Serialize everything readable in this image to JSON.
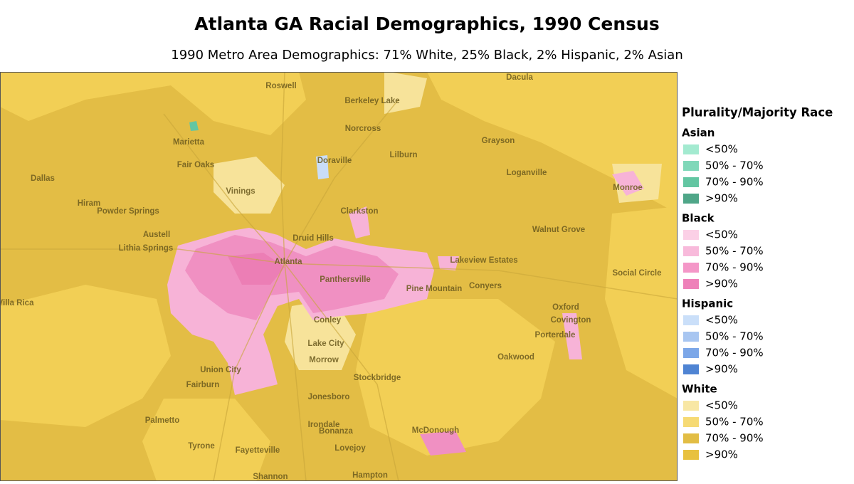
{
  "header": {
    "title": "Atlanta GA Racial Demographics, 1990 Census",
    "subtitle": "1990 Metro Area Demographics: 71% White, 25% Black, 2% Hispanic, 2% Asian"
  },
  "map": {
    "places": [
      "Roswell",
      "Dacula",
      "Berkeley Lake",
      "Norcross",
      "Marietta",
      "Grayson",
      "Doraville",
      "Lilburn",
      "Fair Oaks",
      "Dallas",
      "Loganville",
      "Monroe",
      "Vinings",
      "Hiram",
      "Powder Springs",
      "Clarkston",
      "Druid Hills",
      "Austell",
      "Walnut Grove",
      "Lithia Springs",
      "Atlanta",
      "Lakeview Estates",
      "Panthersville",
      "Social Circle",
      "Pine Mountain",
      "Conyers",
      "Villa Rica",
      "Oxford",
      "Covington",
      "Conley",
      "Porterdale",
      "Lake City",
      "Morrow",
      "Oakwood",
      "Union City",
      "Stockbridge",
      "Fairburn",
      "Jonesboro",
      "Palmetto",
      "Irondale",
      "Bonanza",
      "McDonough",
      "Tyrone",
      "Fayetteville",
      "Lovejoy",
      "Shannon",
      "Hampton"
    ]
  },
  "legend": {
    "title": "Plurality/Majority Race",
    "groups": [
      {
        "name": "Asian",
        "items": [
          {
            "label": "<50%",
            "color": "#a3ead0"
          },
          {
            "label": "50% - 70%",
            "color": "#80d8b9"
          },
          {
            "label": "70% - 90%",
            "color": "#63c6a2"
          },
          {
            "label": ">90%",
            "color": "#4fa688"
          }
        ]
      },
      {
        "name": "Black",
        "items": [
          {
            "label": "<50%",
            "color": "#fbd0e6"
          },
          {
            "label": "50% - 70%",
            "color": "#f8badb"
          },
          {
            "label": "70% - 90%",
            "color": "#f497c8"
          },
          {
            "label": ">90%",
            "color": "#ee81b9"
          }
        ]
      },
      {
        "name": "Hispanic",
        "items": [
          {
            "label": "<50%",
            "color": "#cadff9"
          },
          {
            "label": "50% - 70%",
            "color": "#a8c6f1"
          },
          {
            "label": "70% - 90%",
            "color": "#7ca7e8"
          },
          {
            "label": ">90%",
            "color": "#4f84d3"
          }
        ]
      },
      {
        "name": "White",
        "items": [
          {
            "label": "<50%",
            "color": "#f8e7a4"
          },
          {
            "label": "50% - 70%",
            "color": "#f6da74"
          },
          {
            "label": "70% - 90%",
            "color": "#e2bd44"
          },
          {
            "label": ">90%",
            "color": "#e8c13f"
          }
        ]
      }
    ]
  }
}
